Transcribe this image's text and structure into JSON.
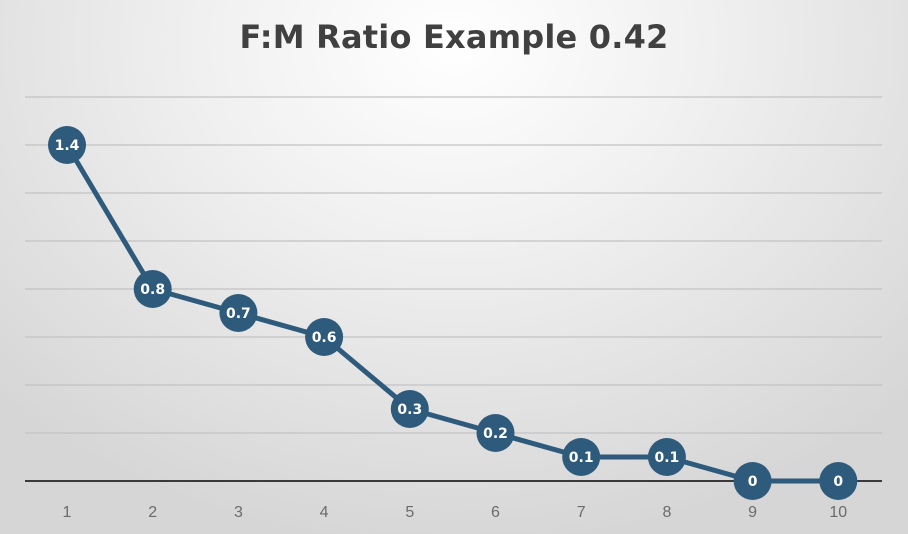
{
  "chart_data": {
    "type": "line",
    "title": "F:M Ratio Example 0.42",
    "categories": [
      "1",
      "2",
      "3",
      "4",
      "5",
      "6",
      "7",
      "8",
      "9",
      "10"
    ],
    "values": [
      1.4,
      0.8,
      0.7,
      0.6,
      0.3,
      0.2,
      0.1,
      0.1,
      0,
      0
    ],
    "data_labels": [
      "1.4",
      "0.8",
      "0.7",
      "0.6",
      "0.3",
      "0.2",
      "0.1",
      "0.1",
      "0",
      "0"
    ],
    "ylim": [
      0,
      1.6
    ],
    "ygrid_step": 0.2,
    "grid": true,
    "legend": "none",
    "colors": {
      "series": "#2e5a7c",
      "grid": "#c2c2c2",
      "axis": "#3a3a3a",
      "tick": "#6b6b6b",
      "label": "#ffffff"
    }
  }
}
